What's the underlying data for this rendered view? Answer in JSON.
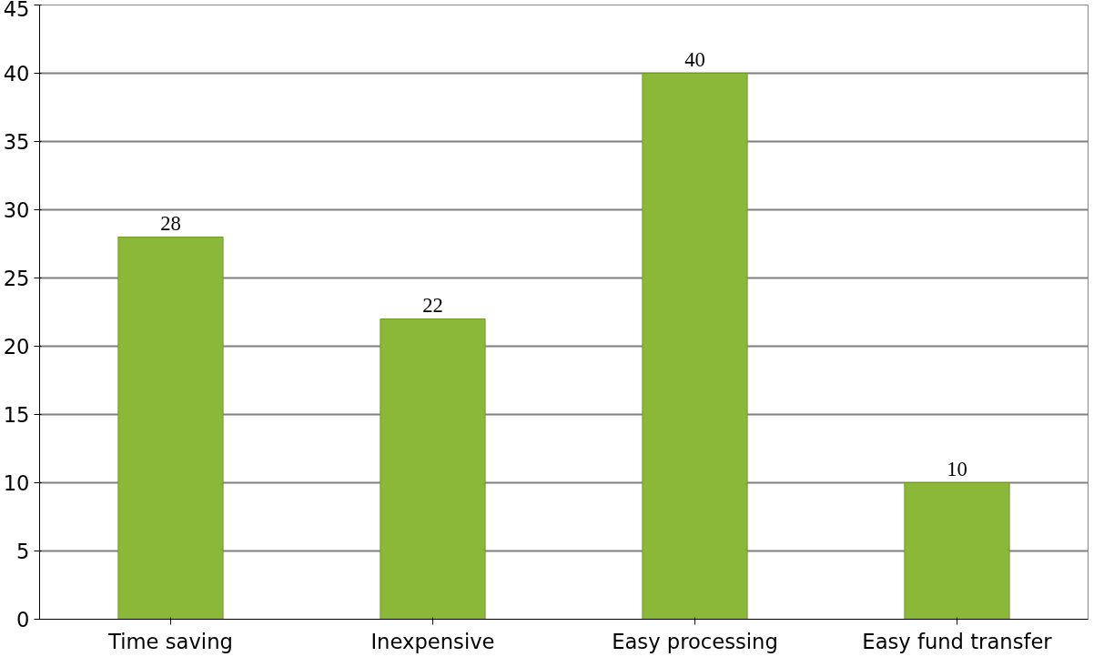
{
  "chart_data": {
    "type": "bar",
    "categories": [
      "Time saving",
      "Inexpensive",
      "Easy processing",
      "Easy fund transfer"
    ],
    "series": [
      {
        "color": "#8cb83a",
        "values": [
          28,
          22,
          40,
          10
        ]
      }
    ],
    "ylim": [
      0,
      45
    ],
    "yticks": [
      0,
      5,
      10,
      15,
      20,
      25,
      30,
      35,
      40,
      45
    ],
    "grid": "y",
    "data_labels": true
  }
}
